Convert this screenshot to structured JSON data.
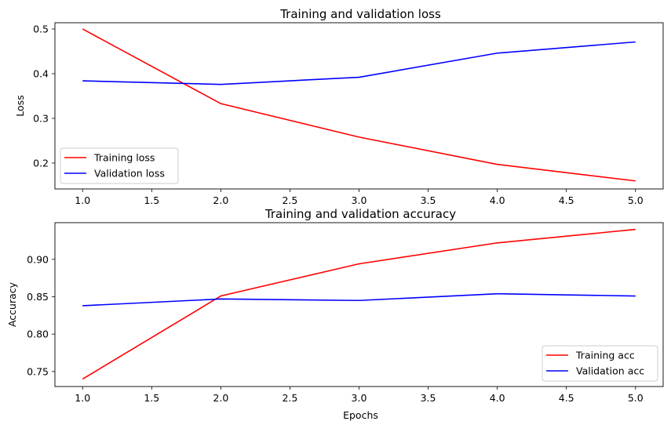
{
  "chart_data": [
    {
      "type": "line",
      "title": "Training and validation loss",
      "xlabel": "",
      "ylabel": "Loss",
      "x": [
        1,
        2,
        3,
        4,
        5
      ],
      "xlim": [
        0.8,
        5.2
      ],
      "ylim": [
        0.142,
        0.514
      ],
      "xticks": [
        "1.0",
        "1.5",
        "2.0",
        "2.5",
        "3.0",
        "3.5",
        "4.0",
        "4.5",
        "5.0"
      ],
      "yticks": [
        "0.2",
        "0.3",
        "0.4",
        "0.5"
      ],
      "grid": false,
      "legend_position": "lower-left",
      "series": [
        {
          "name": "Training loss",
          "color": "#ff0000",
          "values": [
            0.5,
            0.333,
            0.258,
            0.197,
            0.16
          ]
        },
        {
          "name": "Validation loss",
          "color": "#0000ff",
          "values": [
            0.384,
            0.376,
            0.392,
            0.446,
            0.471
          ]
        }
      ]
    },
    {
      "type": "line",
      "title": "Training and validation accuracy",
      "xlabel": "Epochs",
      "ylabel": "Accuracy",
      "x": [
        1,
        2,
        3,
        4,
        5
      ],
      "xlim": [
        0.8,
        5.2
      ],
      "ylim": [
        0.73,
        0.949
      ],
      "xticks": [
        "1.0",
        "1.5",
        "2.0",
        "2.5",
        "3.0",
        "3.5",
        "4.0",
        "4.5",
        "5.0"
      ],
      "yticks": [
        "0.75",
        "0.80",
        "0.85",
        "0.90"
      ],
      "grid": false,
      "legend_position": "lower-right",
      "series": [
        {
          "name": "Training acc",
          "color": "#ff0000",
          "values": [
            0.74,
            0.851,
            0.894,
            0.922,
            0.94
          ]
        },
        {
          "name": "Validation acc",
          "color": "#0000ff",
          "values": [
            0.838,
            0.847,
            0.845,
            0.854,
            0.851
          ]
        }
      ]
    }
  ]
}
